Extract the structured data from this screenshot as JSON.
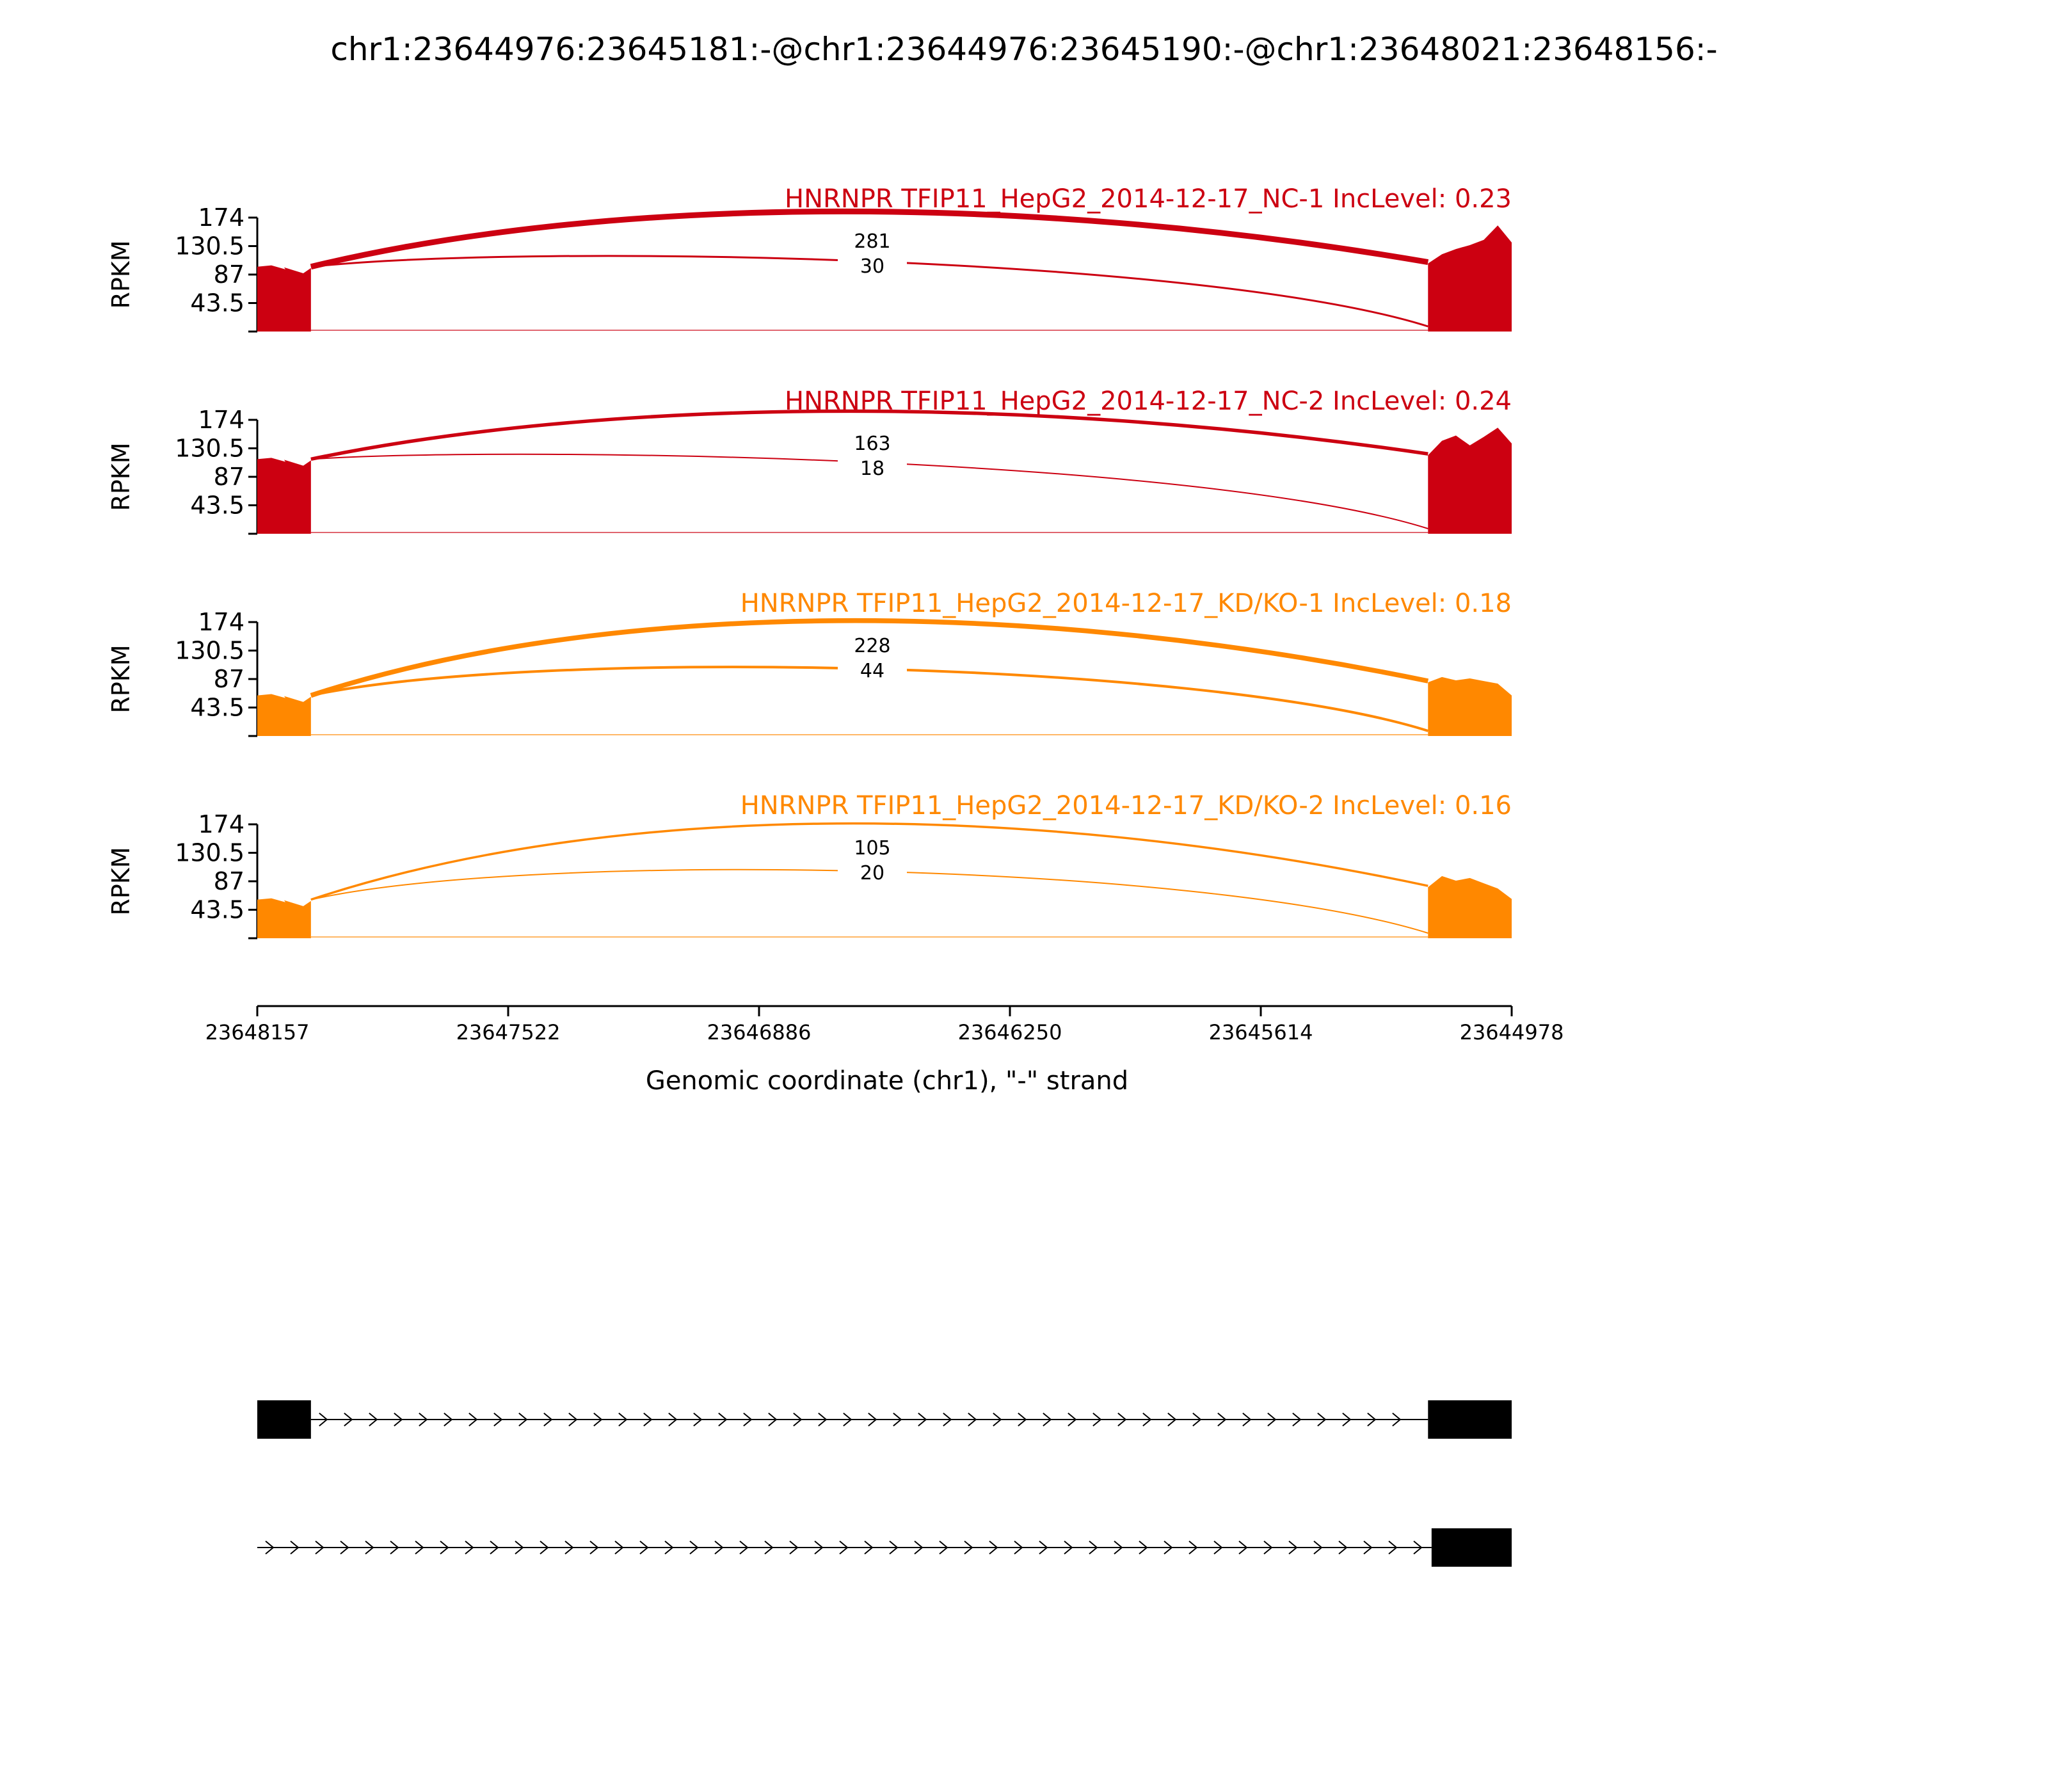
{
  "title": "chr1:23644976:23645181:-@chr1:23644976:23645190:-@chr1:23648021:23648156:-",
  "chart_data": {
    "type": "sashimi",
    "xaxis": {
      "label": "Genomic coordinate (chr1), \"-\" strand",
      "ticks": [
        "23648157",
        "23647522",
        "23646886",
        "23646250",
        "23645614",
        "23644978"
      ],
      "range": [
        23648157,
        23644978
      ]
    },
    "yaxis": {
      "label": "RPKM",
      "ticks": [
        "174",
        "130.5",
        "87",
        "43.5"
      ],
      "range": [
        0,
        174
      ]
    },
    "exon1": [
      23648157,
      23648021
    ],
    "exon2": [
      23645190,
      23644978
    ],
    "samples": [
      {
        "title": "HNRNPR TFIP11_HepG2_2014-12-17_NC-1 IncLevel: 0.23",
        "color": "#cc0011",
        "exon1_level": 95,
        "exon2_level": [
          104,
          118,
          126,
          132,
          140,
          162,
          136
        ],
        "junctions": [
          {
            "label": "281",
            "count": 281
          },
          {
            "label": "30",
            "count": 30
          }
        ]
      },
      {
        "title": "HNRNPR TFIP11_HepG2_2014-12-17_NC-2 IncLevel: 0.24",
        "color": "#cc0011",
        "exon1_level": 110,
        "exon2_level": [
          120,
          142,
          150,
          135,
          148,
          162,
          138
        ],
        "junctions": [
          {
            "label": "163",
            "count": 163
          },
          {
            "label": "18",
            "count": 18
          }
        ]
      },
      {
        "title": "HNRNPR TFIP11_HepG2_2014-12-17_KD/KO-1 IncLevel: 0.18",
        "color": "#ff8800",
        "exon1_level": 58,
        "exon2_level": [
          82,
          90,
          85,
          88,
          84,
          80,
          62
        ],
        "junctions": [
          {
            "label": "228",
            "count": 228
          },
          {
            "label": "44",
            "count": 44
          }
        ]
      },
      {
        "title": "HNRNPR TFIP11_HepG2_2014-12-17_KD/KO-2 IncLevel: 0.16",
        "color": "#ff8800",
        "exon1_level": 55,
        "exon2_level": [
          78,
          95,
          88,
          92,
          84,
          76,
          60
        ],
        "junctions": [
          {
            "label": "105",
            "count": 105
          },
          {
            "label": "20",
            "count": 20
          }
        ]
      }
    ],
    "gene_models": [
      {
        "exons": [
          [
            23648157,
            23648021
          ],
          [
            23645190,
            23644978
          ]
        ],
        "intron": [
          23648021,
          23645190
        ]
      },
      {
        "exons": [
          [
            23645181,
            23644978
          ]
        ],
        "intron": [
          23648157,
          23645181
        ]
      }
    ]
  }
}
